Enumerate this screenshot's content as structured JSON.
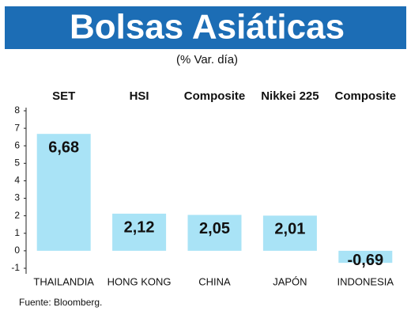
{
  "chart_data": {
    "type": "bar",
    "title": "Bolsas Asiáticas",
    "subtitle": "(% Var. día)",
    "index_names": [
      "SET",
      "HSI",
      "Composite",
      "Nikkei 225",
      "Composite"
    ],
    "categories": [
      "THAILANDIA",
      "HONG KONG",
      "CHINA",
      "JAPÓN",
      "INDONESIA"
    ],
    "values": [
      6.68,
      2.12,
      2.05,
      2.01,
      -0.69
    ],
    "value_labels": [
      "6,68",
      "2,12",
      "2,05",
      "2,01",
      "-0,69"
    ],
    "color": "#a9e3f6",
    "header_color": "#1c6db5",
    "ylim": [
      -1,
      8
    ],
    "yticks": [
      -1,
      0,
      1,
      2,
      3,
      4,
      5,
      6,
      7,
      8
    ],
    "grid": false,
    "source": "Fuente: Bloomberg."
  }
}
